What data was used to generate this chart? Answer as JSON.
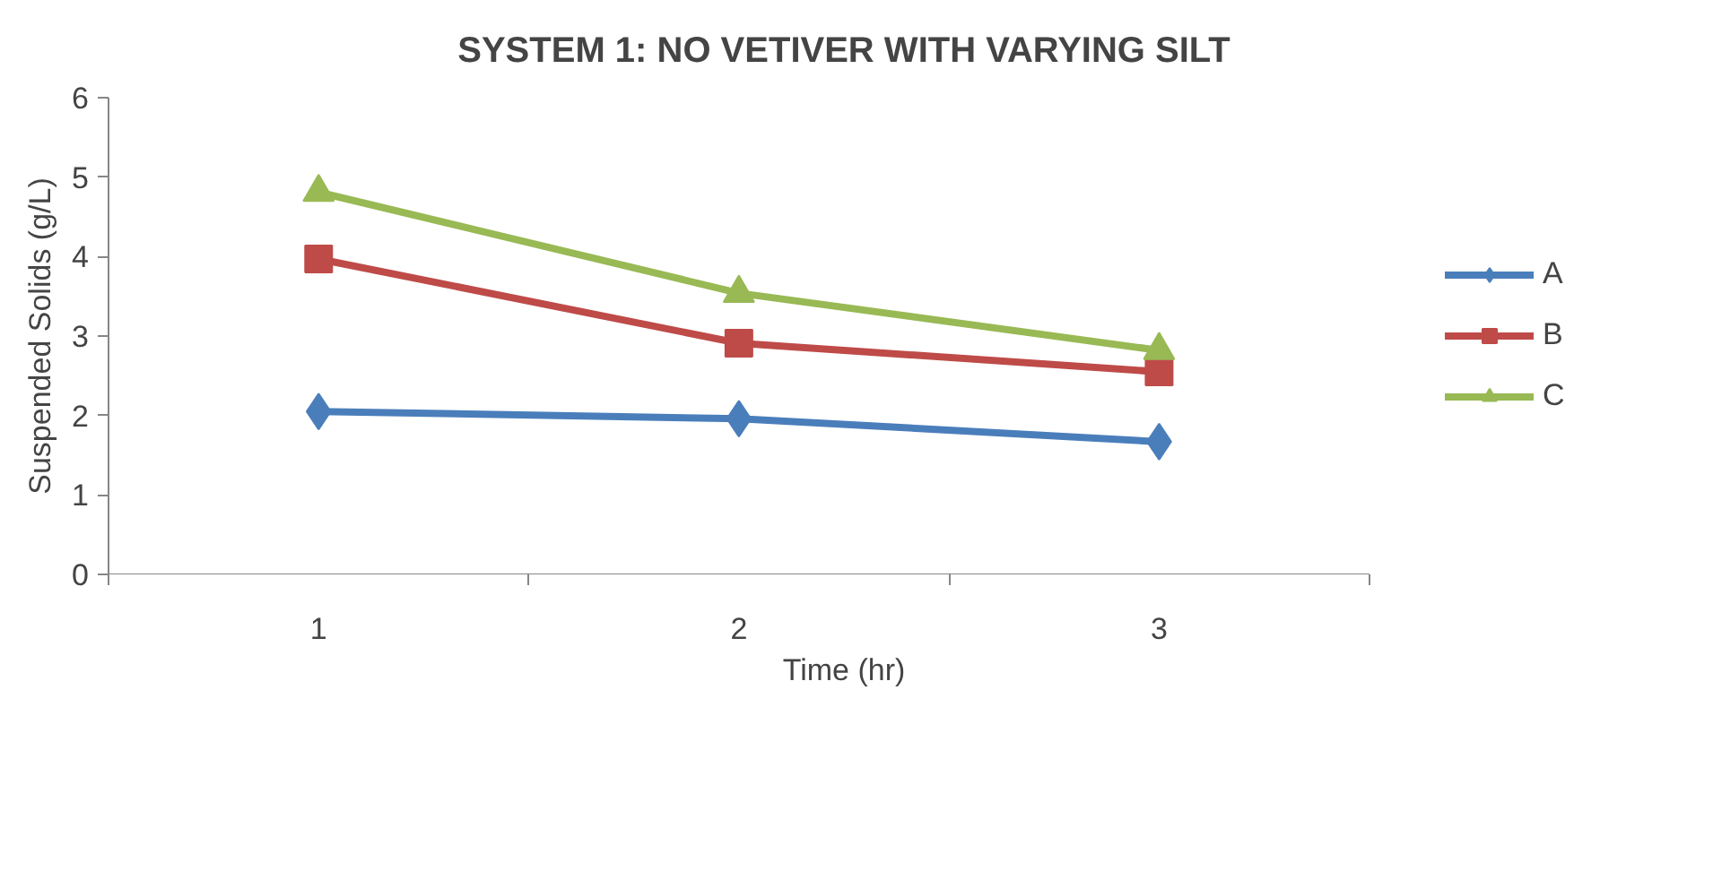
{
  "chart_data": {
    "type": "line",
    "title": "SYSTEM 1: NO VETIVER WITH VARYING SILT",
    "xlabel": "Time (hr)",
    "ylabel": "Suspended Solids (g/L)",
    "categories": [
      "1",
      "2",
      "3"
    ],
    "series": [
      {
        "name": "A",
        "color": "#4a7ebb",
        "marker": "diamond",
        "values": [
          2.05,
          1.96,
          1.67
        ]
      },
      {
        "name": "B",
        "color": "#be4b48",
        "marker": "square",
        "values": [
          3.97,
          2.91,
          2.55
        ]
      },
      {
        "name": "C",
        "color": "#98b954",
        "marker": "triangle",
        "values": [
          4.81,
          3.54,
          2.82
        ]
      }
    ],
    "ylim": [
      0,
      6
    ],
    "yticks": [
      0,
      1,
      2,
      3,
      4,
      5,
      6
    ],
    "grid": false,
    "legend": "right",
    "line_style": "solid"
  }
}
